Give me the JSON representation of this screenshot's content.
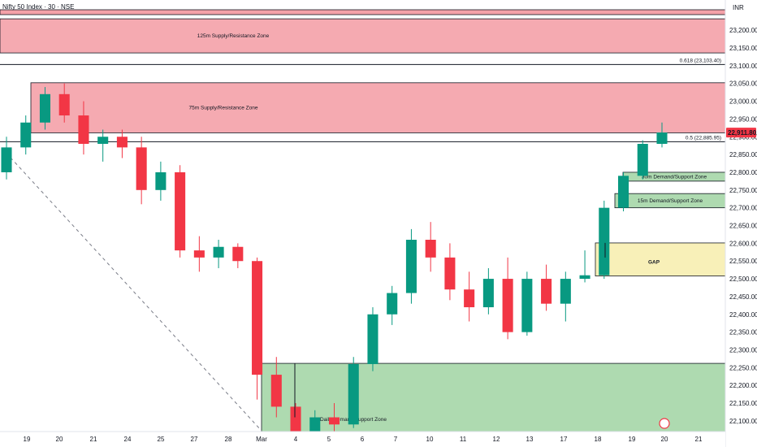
{
  "header": {
    "symbol_title": "Nifty 50 Index · 30 · NSE",
    "currency": "INR"
  },
  "price_badge": {
    "label": "22,911.80",
    "color": "#f23645"
  },
  "colors": {
    "up": "#089981",
    "down": "#f23645",
    "supply_fill": "#f4a1a8",
    "demand_fill": "#a5d6a7",
    "gap_fill": "#f7eeb0"
  },
  "chart_data": {
    "type": "candlestick",
    "title": "Nifty 50 Index · 30 · NSE",
    "ylabel": "INR",
    "ylim": [
      22070,
      23285
    ],
    "y_ticks": [
      22100,
      22150,
      22200,
      22250,
      22300,
      22350,
      22400,
      22450,
      22500,
      22550,
      22600,
      22650,
      22700,
      22750,
      22800,
      22850,
      22900,
      22950,
      23000,
      23050,
      23100,
      23150,
      23200
    ],
    "y_tick_labels": [
      "22,100.00",
      "22,150.00",
      "22,200.00",
      "22,250.00",
      "22,300.00",
      "22,350.00",
      "22,400.00",
      "22,450.00",
      "22,500.00",
      "22,550.00",
      "22,600.00",
      "22,650.00",
      "22,700.00",
      "22,750.00",
      "22,800.00",
      "22,850.00",
      "22,900.00",
      "22,950.00",
      "23,000.00",
      "23,050.00",
      "23,100.00",
      "23,150.00",
      "23,200.00"
    ],
    "x_tick_labels": [
      "19",
      "20",
      "21",
      "24",
      "25",
      "27",
      "28",
      "Mar",
      "4",
      "5",
      "6",
      "7",
      "10",
      "11",
      "12",
      "13",
      "17",
      "18",
      "19",
      "20",
      "21"
    ],
    "last_price": 22911.8,
    "zones": [
      {
        "name": "125m Supply/Resistance Zone",
        "kind": "supply",
        "from": 23136,
        "to": 23232
      },
      {
        "name": "75m Supply/Resistance Zone",
        "kind": "supply",
        "from": 22911,
        "to": 23052
      },
      {
        "name": "30m Demand/Support Zone",
        "kind": "demand",
        "from": 22775,
        "to": 22800
      },
      {
        "name": "15m Demand/Support Zone",
        "kind": "demand",
        "from": 22700,
        "to": 22740
      },
      {
        "name": "GAP",
        "kind": "gap",
        "from": 22508,
        "to": 22601
      },
      {
        "name": "Daily Demand/Support Zone",
        "kind": "demand",
        "from": 22050,
        "to": 22262
      }
    ],
    "levels": [
      {
        "label": "0.618 (23,103.40)",
        "value": 23103.4
      },
      {
        "label": "0.5 (22,885.95)",
        "value": 22885.95
      }
    ],
    "candles": [
      [
        22800,
        22900,
        22780,
        22870
      ],
      [
        22870,
        22960,
        22850,
        22940
      ],
      [
        22940,
        23040,
        22920,
        23020
      ],
      [
        23020,
        23050,
        22940,
        22960
      ],
      [
        22960,
        23000,
        22850,
        22880
      ],
      [
        22880,
        22920,
        22830,
        22900
      ],
      [
        22900,
        22920,
        22840,
        22870
      ],
      [
        22870,
        22900,
        22710,
        22750
      ],
      [
        22750,
        22830,
        22720,
        22800
      ],
      [
        22800,
        22820,
        22560,
        22580
      ],
      [
        22580,
        22620,
        22520,
        22560
      ],
      [
        22560,
        22610,
        22530,
        22590
      ],
      [
        22590,
        22600,
        22530,
        22550
      ],
      [
        22550,
        22560,
        22160,
        22230
      ],
      [
        22230,
        22280,
        22110,
        22140
      ],
      [
        22140,
        22150,
        22020,
        22060
      ],
      [
        22060,
        22130,
        22040,
        22110
      ],
      [
        22110,
        22150,
        22060,
        22090
      ],
      [
        22090,
        22280,
        22080,
        22260
      ],
      [
        22260,
        22420,
        22240,
        22400
      ],
      [
        22400,
        22480,
        22370,
        22460
      ],
      [
        22460,
        22640,
        22430,
        22610
      ],
      [
        22610,
        22660,
        22520,
        22560
      ],
      [
        22560,
        22600,
        22440,
        22470
      ],
      [
        22470,
        22520,
        22380,
        22420
      ],
      [
        22420,
        22530,
        22400,
        22500
      ],
      [
        22500,
        22560,
        22330,
        22350
      ],
      [
        22350,
        22520,
        22340,
        22500
      ],
      [
        22500,
        22540,
        22410,
        22430
      ],
      [
        22430,
        22520,
        22380,
        22500
      ],
      [
        22500,
        22580,
        22490,
        22510
      ],
      [
        22510,
        22720,
        22500,
        22700
      ],
      [
        22700,
        22800,
        22690,
        22790
      ],
      [
        22790,
        22890,
        22780,
        22880
      ],
      [
        22880,
        22940,
        22870,
        22912
      ]
    ]
  }
}
